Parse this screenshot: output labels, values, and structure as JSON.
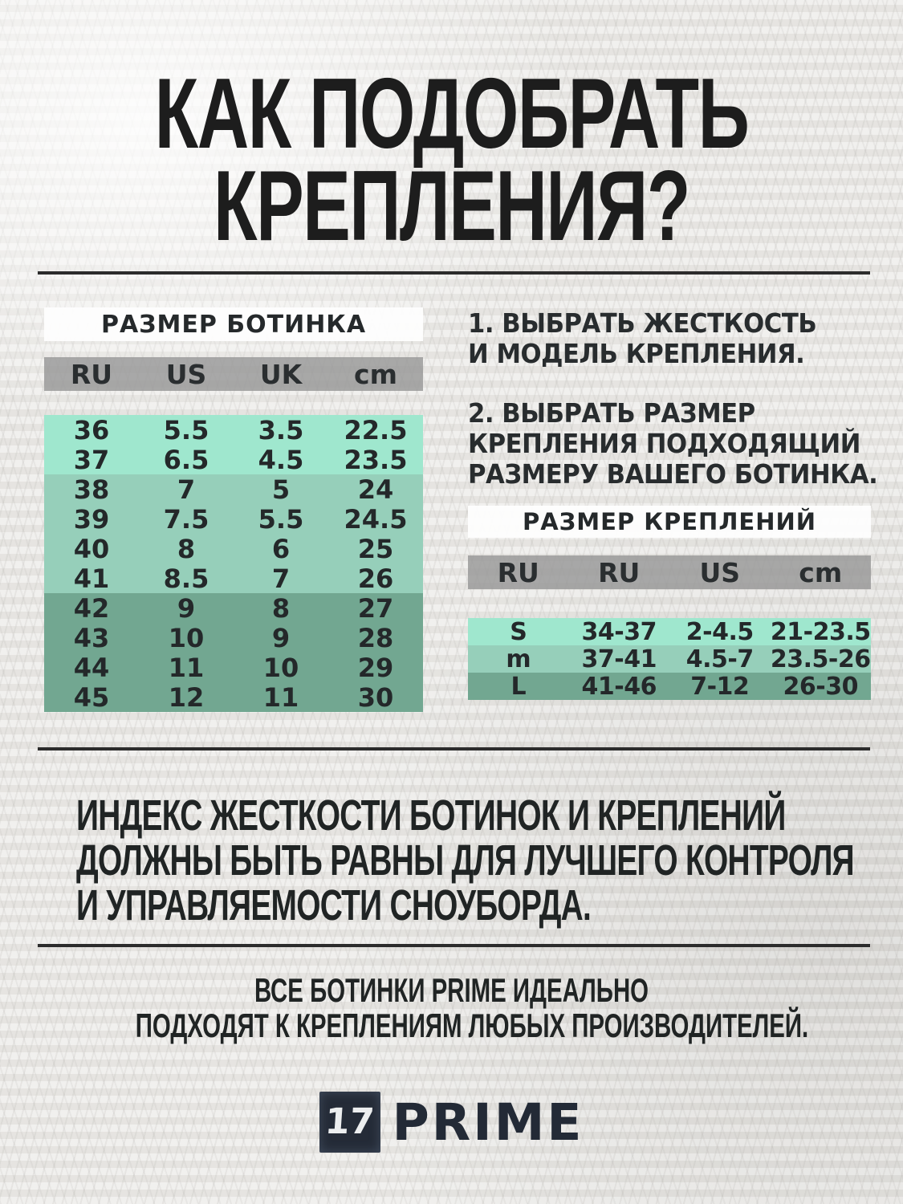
{
  "title": {
    "line1": "КАК ПОДОБРАТЬ",
    "line2": "КРЕПЛЕНИЯ?"
  },
  "boot_table": {
    "title": "РАЗМЕР БОТИНКА",
    "columns": [
      "RU",
      "US",
      "UK",
      "cm"
    ],
    "groups": [
      {
        "tone": "light",
        "rows": [
          [
            "36",
            "5.5",
            "3.5",
            "22.5"
          ],
          [
            "37",
            "6.5",
            "4.5",
            "23.5"
          ]
        ]
      },
      {
        "tone": "medium",
        "rows": [
          [
            "38",
            "7",
            "5",
            "24"
          ],
          [
            "39",
            "7.5",
            "5.5",
            "24.5"
          ],
          [
            "40",
            "8",
            "6",
            "25"
          ],
          [
            "41",
            "8.5",
            "7",
            "26"
          ]
        ]
      },
      {
        "tone": "dark",
        "rows": [
          [
            "42",
            "9",
            "8",
            "27"
          ],
          [
            "43",
            "10",
            "9",
            "28"
          ],
          [
            "44",
            "11",
            "10",
            "29"
          ],
          [
            "45",
            "12",
            "11",
            "30"
          ]
        ]
      }
    ]
  },
  "steps": {
    "step1_line1": "1. ВЫБРАТЬ ЖЕСТКОСТЬ",
    "step1_line2": "И МОДЕЛЬ КРЕПЛЕНИЯ.",
    "step2_line1": "2. ВЫБРАТЬ РАЗМЕР",
    "step2_line2": "КРЕПЛЕНИЯ ПОДХОДЯЩИЙ",
    "step2_line3": "РАЗМЕРУ ВАШЕГО БОТИНКА."
  },
  "binding_table": {
    "title": "РАЗМЕР КРЕПЛЕНИЙ",
    "columns": [
      "RU",
      "RU",
      "US",
      "cm"
    ],
    "rows": [
      {
        "tone": "light",
        "size": "S",
        "ru": "34-37",
        "us": "2-4.5",
        "cm": "21-23.5"
      },
      {
        "tone": "medium",
        "size": "m",
        "ru": "37-41",
        "us": "4.5-7",
        "cm": "23.5-26"
      },
      {
        "tone": "dark",
        "size": "L",
        "ru": "41-46",
        "us": "7-12",
        "cm": "26-30"
      }
    ]
  },
  "note": {
    "line1": "ИНДЕКС ЖЕСТКОСТИ БОТИНОК И КРЕПЛЕНИЙ",
    "line2": "ДОЛЖНЫ БЫТЬ РАВНЫ ДЛЯ ЛУЧШЕГО КОНТРОЛЯ",
    "line3": "И УПРАВЛЯЕМОСТИ СНОУБОРДА."
  },
  "footer": {
    "line1": "ВСЕ БОТИНКИ PRIME ИДЕАЛЬНО",
    "line2": "ПОДХОДЯТ К КРЕПЛЕНИЯМ ЛЮБЫХ ПРОИЗВОДИТЕЛЕЙ.",
    "logo_glyph": "17",
    "brand": "PRIME"
  },
  "colors": {
    "background": "#e9e8e5",
    "band_light": "#9fe7ce",
    "band_medium": "#96cfba",
    "band_dark": "#72a791",
    "header_gray": "#a9a9a9",
    "panel_white": "#fbfbfb",
    "text_dark": "#25292b",
    "divider": "#2c2c2c",
    "logo_navy": "#242b37"
  }
}
